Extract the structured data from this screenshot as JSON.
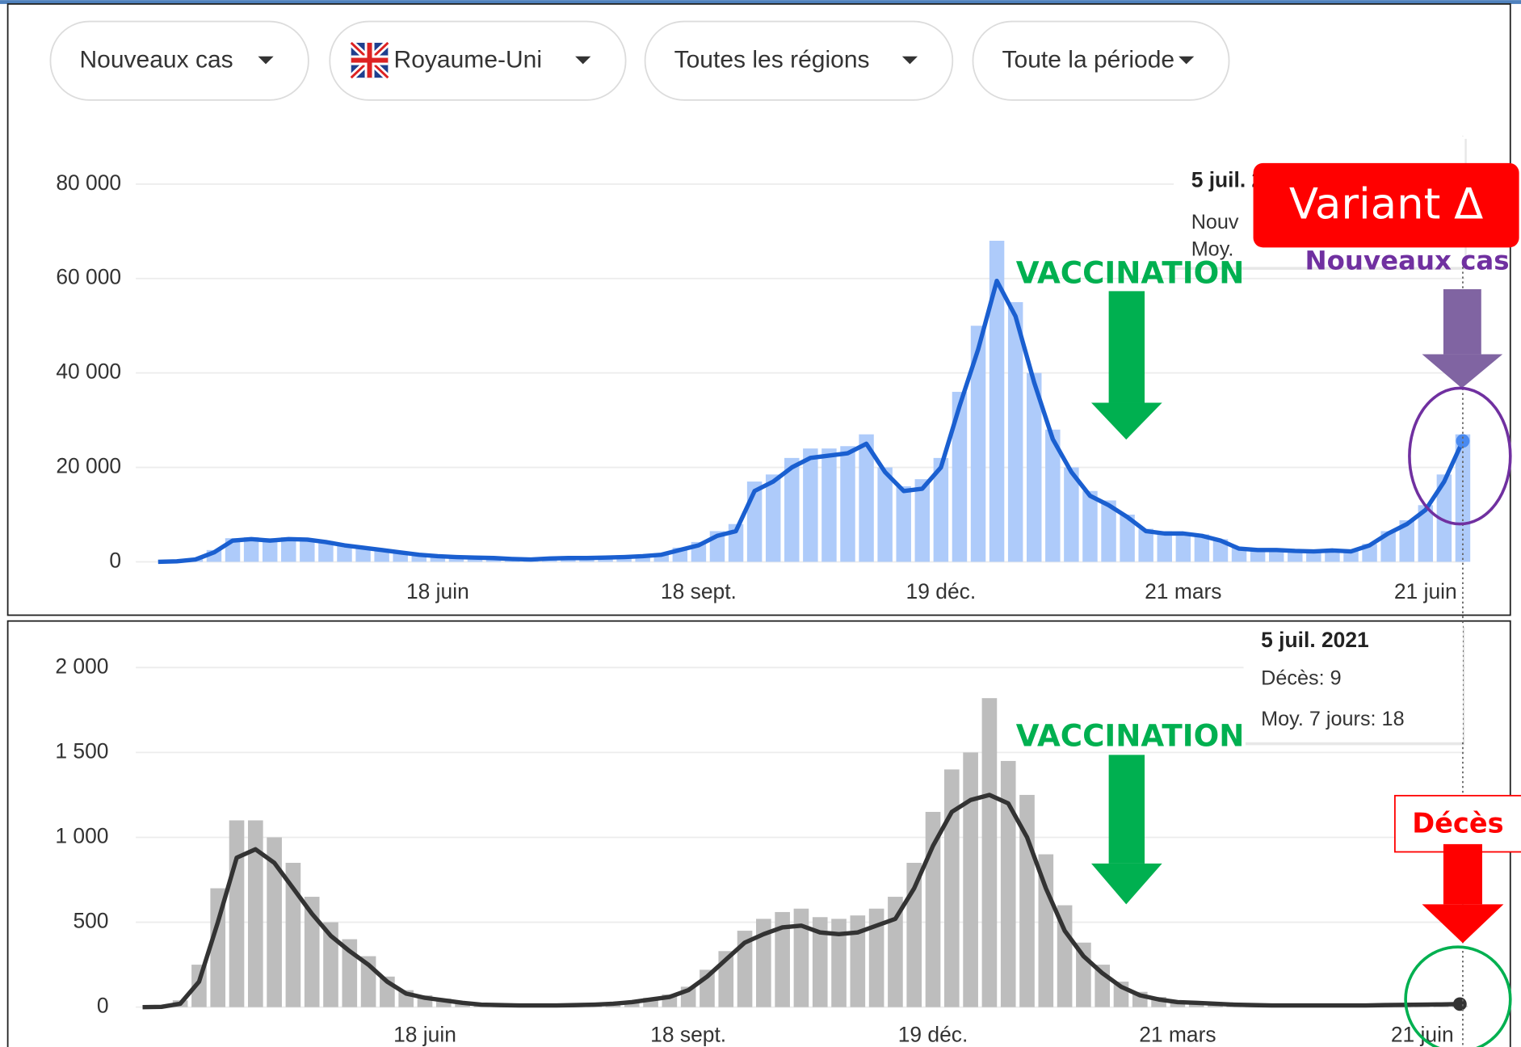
{
  "filters": [
    "Nouveaux cas",
    "Royaume-Uni",
    "Toutes les régions",
    "Toute la période"
  ],
  "chart_data": [
    {
      "type": "bar_line",
      "categories": [
        null,
        null,
        null,
        null,
        null,
        null,
        null,
        null,
        null,
        null,
        null,
        null,
        null,
        null,
        null,
        "18 juin",
        null,
        null,
        null,
        null,
        null,
        null,
        null,
        null,
        null,
        null,
        null,
        null,
        null,
        "18 sept.",
        null,
        null,
        null,
        null,
        null,
        null,
        null,
        null,
        null,
        null,
        null,
        null,
        "19 déc.",
        null,
        null,
        null,
        null,
        null,
        null,
        null,
        null,
        null,
        null,
        null,
        null,
        "21 mars",
        null,
        null,
        null,
        null,
        null,
        null,
        null,
        null,
        null,
        null,
        null,
        null,
        "21 juin",
        null,
        null
      ],
      "series": [
        {
          "color": "#aecbfa",
          "values": [
            0,
            200,
            700,
            2500,
            5000,
            5200,
            5000,
            5200,
            4900,
            4400,
            3600,
            3100,
            2600,
            2100,
            1600,
            1300,
            1100,
            1000,
            900,
            700,
            600,
            800,
            900,
            900,
            1000,
            1100,
            1400,
            1800,
            3000,
            4200,
            6500,
            8000,
            17000,
            18500,
            22000,
            24000,
            24000,
            24500,
            27000,
            20000,
            16000,
            17500,
            22000,
            36000,
            50000,
            68000,
            55000,
            40000,
            28000,
            20000,
            15000,
            13000,
            10000,
            7000,
            6500,
            6200,
            5800,
            4800,
            3000,
            2700,
            2700,
            2500,
            2400,
            2600,
            2400,
            3800,
            6500,
            8800,
            12000,
            18500,
            27000
          ]
        },
        {
          "color": "#1a5fd0",
          "values": [
            0,
            100,
            500,
            2000,
            4500,
            4800,
            4500,
            4800,
            4700,
            4200,
            3500,
            3000,
            2500,
            2000,
            1500,
            1200,
            1000,
            900,
            800,
            600,
            500,
            700,
            800,
            800,
            900,
            1000,
            1200,
            1500,
            2500,
            3500,
            5500,
            6500,
            15000,
            17000,
            20000,
            22000,
            22500,
            23000,
            25000,
            19000,
            15000,
            15500,
            20000,
            33000,
            45000,
            59500,
            52000,
            38000,
            26000,
            19000,
            14000,
            12000,
            9500,
            6500,
            6000,
            6000,
            5500,
            4500,
            2800,
            2500,
            2500,
            2300,
            2200,
            2400,
            2200,
            3500,
            6000,
            8000,
            11000,
            17000,
            25600
          ]
        }
      ],
      "ylim": [
        0,
        90000
      ],
      "yticks": [
        0,
        {
          "value": 20000,
          "label": "20 000"
        },
        {
          "value": 40000,
          "label": "40 000"
        },
        {
          "value": 60000,
          "label": "60 000"
        },
        {
          "value": 80000,
          "label": "80 000"
        }
      ],
      "grid": true,
      "tooltip": {
        "title": "5 juil. 2021",
        "lines": [
          "Nouv",
          "Moy."
        ]
      },
      "annotations": {
        "vaccination": "VACCINATION",
        "variant": "Variant Δ",
        "marker": "Nouveaux cas"
      }
    },
    {
      "type": "bar_line",
      "categories": [
        null,
        null,
        null,
        null,
        null,
        null,
        null,
        null,
        null,
        null,
        null,
        null,
        null,
        null,
        null,
        "18 juin",
        null,
        null,
        null,
        null,
        null,
        null,
        null,
        null,
        null,
        null,
        null,
        null,
        null,
        "18 sept.",
        null,
        null,
        null,
        null,
        null,
        null,
        null,
        null,
        null,
        null,
        null,
        null,
        "19 déc.",
        null,
        null,
        null,
        null,
        null,
        null,
        null,
        null,
        null,
        null,
        null,
        null,
        "21 mars",
        null,
        null,
        null,
        null,
        null,
        null,
        null,
        null,
        null,
        null,
        null,
        null,
        "21 juin",
        null,
        null
      ],
      "series": [
        {
          "color": "#bdbdbd",
          "values": [
            0,
            5,
            40,
            250,
            700,
            1100,
            1100,
            1000,
            850,
            650,
            500,
            400,
            300,
            180,
            100,
            70,
            50,
            30,
            20,
            15,
            12,
            12,
            12,
            15,
            18,
            25,
            35,
            55,
            75,
            120,
            220,
            330,
            450,
            520,
            560,
            580,
            530,
            520,
            540,
            580,
            650,
            850,
            1150,
            1400,
            1500,
            1820,
            1450,
            1250,
            900,
            600,
            380,
            250,
            150,
            90,
            60,
            40,
            32,
            25,
            20,
            15,
            13,
            12,
            12,
            12,
            12,
            12,
            14,
            15,
            18,
            20,
            9
          ]
        },
        {
          "color": "#333333",
          "values": [
            0,
            2,
            20,
            150,
            500,
            880,
            930,
            850,
            700,
            550,
            420,
            330,
            250,
            150,
            80,
            55,
            40,
            25,
            15,
            12,
            10,
            10,
            10,
            12,
            15,
            20,
            30,
            45,
            60,
            100,
            180,
            280,
            380,
            430,
            470,
            480,
            440,
            430,
            440,
            480,
            520,
            700,
            950,
            1150,
            1220,
            1250,
            1200,
            1000,
            700,
            450,
            300,
            200,
            120,
            70,
            45,
            30,
            25,
            20,
            15,
            12,
            10,
            10,
            10,
            10,
            10,
            10,
            12,
            13,
            15,
            16,
            18
          ]
        }
      ],
      "ylim": [
        0,
        2200
      ],
      "yticks": [
        0,
        500,
        {
          "value": 1000,
          "label": "1 000"
        },
        {
          "value": 1500,
          "label": "1 500"
        },
        {
          "value": 2000,
          "label": "2 000"
        }
      ],
      "grid": true,
      "tooltip": {
        "title": "5 juil. 2021",
        "lines": [
          "Décès: 9",
          "Moy. 7 jours: 18"
        ]
      },
      "annotations": {
        "vaccination": "VACCINATION",
        "marker": "Décès"
      }
    }
  ]
}
